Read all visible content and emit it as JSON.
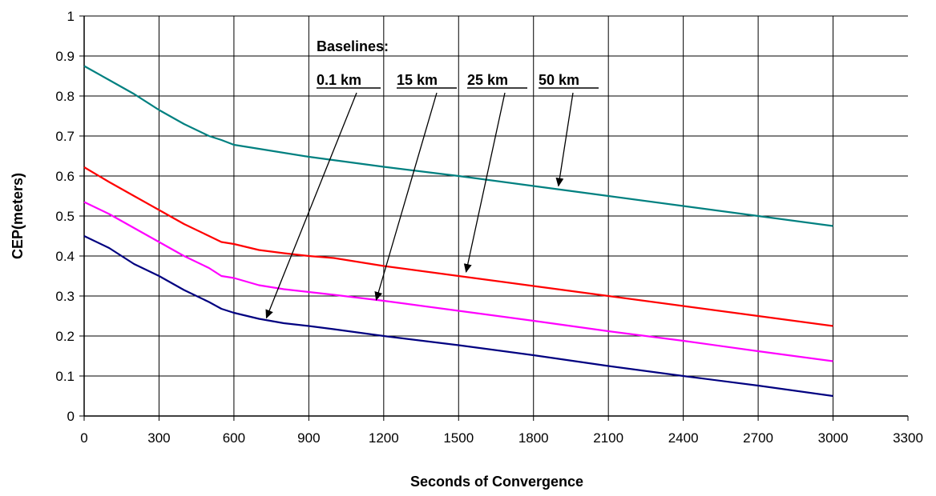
{
  "chart_data": {
    "type": "line",
    "title": "",
    "xlabel": "Seconds of Convergence",
    "ylabel": "CEP(meters)",
    "xlim": [
      0,
      3300
    ],
    "ylim": [
      0,
      1
    ],
    "x_ticks": [
      "0",
      "300",
      "600",
      "900",
      "1200",
      "1500",
      "1800",
      "2100",
      "2400",
      "2700",
      "3000",
      "3300"
    ],
    "y_ticks": [
      "0",
      "0.1",
      "0.2",
      "0.3",
      "0.4",
      "0.5",
      "0.6",
      "0.7",
      "0.8",
      "0.9",
      "1"
    ],
    "grid": true,
    "legend_title": "Baselines:",
    "series": [
      {
        "name": "0.1 km",
        "color": "#000080",
        "x": [
          0,
          100,
          200,
          300,
          400,
          500,
          550,
          600,
          700,
          800,
          900,
          1000,
          1200,
          1500,
          1800,
          2100,
          2400,
          2700,
          3000
        ],
        "y": [
          0.45,
          0.42,
          0.38,
          0.35,
          0.315,
          0.285,
          0.268,
          0.258,
          0.243,
          0.232,
          0.225,
          0.217,
          0.2,
          0.177,
          0.152,
          0.125,
          0.1,
          0.076,
          0.05
        ]
      },
      {
        "name": "15 km",
        "color": "#ff00ff",
        "x": [
          0,
          100,
          200,
          300,
          400,
          500,
          550,
          600,
          700,
          800,
          900,
          1000,
          1200,
          1500,
          1800,
          2100,
          2400,
          2700,
          3000
        ],
        "y": [
          0.535,
          0.505,
          0.47,
          0.435,
          0.4,
          0.37,
          0.35,
          0.345,
          0.327,
          0.317,
          0.31,
          0.303,
          0.288,
          0.263,
          0.238,
          0.212,
          0.188,
          0.162,
          0.137
        ]
      },
      {
        "name": "25 km",
        "color": "#ff0000",
        "x": [
          0,
          100,
          200,
          300,
          400,
          500,
          550,
          600,
          700,
          800,
          900,
          1000,
          1200,
          1500,
          1800,
          2100,
          2400,
          2700,
          3000
        ],
        "y": [
          0.622,
          0.585,
          0.55,
          0.515,
          0.48,
          0.45,
          0.435,
          0.43,
          0.415,
          0.407,
          0.4,
          0.395,
          0.375,
          0.35,
          0.325,
          0.3,
          0.275,
          0.25,
          0.225
        ]
      },
      {
        "name": "50 km",
        "color": "#008080",
        "x": [
          0,
          100,
          200,
          300,
          400,
          500,
          550,
          600,
          700,
          900,
          1200,
          1500,
          1800,
          2100,
          2400,
          2700,
          3000
        ],
        "y": [
          0.875,
          0.84,
          0.805,
          0.765,
          0.73,
          0.7,
          0.69,
          0.678,
          0.668,
          0.648,
          0.623,
          0.6,
          0.575,
          0.55,
          0.525,
          0.5,
          0.475
        ]
      }
    ],
    "arrows": [
      {
        "series": "0.1 km",
        "target": [
          730,
          0.245
        ]
      },
      {
        "series": "15 km",
        "target": [
          1170,
          0.29
        ]
      },
      {
        "series": "25 km",
        "target": [
          1530,
          0.36
        ]
      },
      {
        "series": "50 km",
        "target": [
          1900,
          0.575
        ]
      }
    ]
  }
}
